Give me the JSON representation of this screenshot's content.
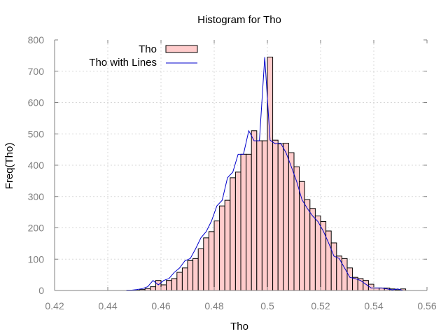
{
  "chart_data": {
    "type": "bar",
    "title": "Histogram for Tho",
    "xlabel": "Tho",
    "ylabel": "Freq(Tho)",
    "xlim": [
      0.42,
      0.56
    ],
    "ylim": [
      0,
      800
    ],
    "x_ticks": [
      "0.42",
      "0.44",
      "0.46",
      "0.48",
      "0.5",
      "0.52",
      "0.54",
      "0.56"
    ],
    "y_ticks": [
      "0",
      "100",
      "200",
      "300",
      "400",
      "500",
      "600",
      "700",
      "800"
    ],
    "grid": true,
    "legend_position": "top-left",
    "series": [
      {
        "name": "Tho",
        "style": "histogram",
        "color_fill": "#ffcccc",
        "color_edge": "#000000",
        "bin_width": 0.002,
        "x": [
          0.446,
          0.448,
          0.45,
          0.452,
          0.454,
          0.456,
          0.458,
          0.46,
          0.462,
          0.464,
          0.466,
          0.468,
          0.47,
          0.472,
          0.474,
          0.476,
          0.478,
          0.48,
          0.482,
          0.484,
          0.486,
          0.488,
          0.49,
          0.492,
          0.494,
          0.496,
          0.498,
          0.5,
          0.502,
          0.504,
          0.506,
          0.508,
          0.51,
          0.512,
          0.514,
          0.516,
          0.518,
          0.52,
          0.522,
          0.524,
          0.526,
          0.528,
          0.53,
          0.532,
          0.534,
          0.536,
          0.538,
          0.54,
          0.542,
          0.544,
          0.546,
          0.548,
          0.55,
          0.552,
          0.554
        ],
        "values": [
          0,
          1,
          1,
          3,
          6,
          12,
          32,
          18,
          32,
          38,
          58,
          72,
          95,
          102,
          133,
          168,
          188,
          222,
          270,
          288,
          360,
          378,
          435,
          435,
          510,
          478,
          478,
          745,
          480,
          468,
          470,
          440,
          395,
          348,
          290,
          262,
          238,
          220,
          190,
          152,
          110,
          102,
          72,
          42,
          38,
          32,
          20,
          8,
          8,
          8,
          5,
          2,
          5,
          0,
          0
        ]
      },
      {
        "name": "Tho with Lines",
        "style": "line",
        "color": "#0000cc",
        "x": [
          0.447,
          0.449,
          0.451,
          0.453,
          0.455,
          0.457,
          0.459,
          0.461,
          0.463,
          0.465,
          0.467,
          0.469,
          0.471,
          0.473,
          0.475,
          0.477,
          0.479,
          0.481,
          0.483,
          0.485,
          0.487,
          0.489,
          0.491,
          0.493,
          0.495,
          0.497,
          0.499,
          0.501,
          0.503,
          0.505,
          0.507,
          0.509,
          0.511,
          0.513,
          0.515,
          0.517,
          0.519,
          0.521,
          0.523,
          0.525,
          0.527,
          0.529,
          0.531,
          0.533,
          0.535,
          0.537,
          0.539,
          0.541,
          0.543,
          0.545,
          0.547,
          0.549,
          0.551,
          0.553
        ],
        "values": [
          1,
          1,
          3,
          6,
          12,
          32,
          18,
          32,
          38,
          58,
          72,
          95,
          102,
          133,
          168,
          188,
          222,
          270,
          288,
          360,
          378,
          435,
          435,
          510,
          478,
          478,
          745,
          480,
          468,
          470,
          440,
          395,
          348,
          290,
          262,
          238,
          220,
          190,
          152,
          110,
          102,
          72,
          42,
          38,
          32,
          20,
          8,
          8,
          8,
          5,
          2,
          5,
          0,
          0
        ]
      }
    ]
  }
}
